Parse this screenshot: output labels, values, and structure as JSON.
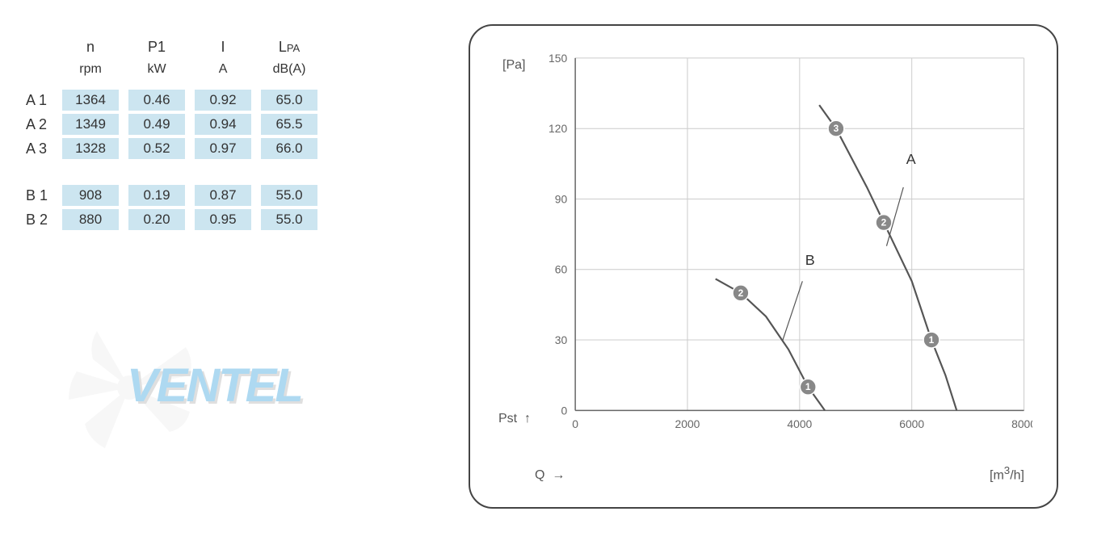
{
  "table": {
    "headers": [
      {
        "symbol": "n",
        "unit": "rpm"
      },
      {
        "symbol": "P1",
        "unit": "kW"
      },
      {
        "symbol": "I",
        "unit": "A"
      },
      {
        "symbol": "LPA",
        "unit": "dB(A)"
      }
    ],
    "groups": [
      {
        "label": "A",
        "rows": [
          {
            "idx": "1",
            "n": "1364",
            "p1": "0.46",
            "i": "0.92",
            "lpa": "65.0"
          },
          {
            "idx": "2",
            "n": "1349",
            "p1": "0.49",
            "i": "0.94",
            "lpa": "65.5"
          },
          {
            "idx": "3",
            "n": "1328",
            "p1": "0.52",
            "i": "0.97",
            "lpa": "66.0"
          }
        ]
      },
      {
        "label": "B",
        "rows": [
          {
            "idx": "1",
            "n": "908",
            "p1": "0.19",
            "i": "0.87",
            "lpa": "55.0"
          },
          {
            "idx": "2",
            "n": "880",
            "p1": "0.20",
            "i": "0.95",
            "lpa": "55.0"
          }
        ]
      }
    ],
    "cell_bg_color": "#cce5f0",
    "text_color": "#333333"
  },
  "watermark": {
    "text": "VENTEL",
    "primary_color": "#5fb4e5",
    "shadow_color": "#c0c0c0",
    "fan_color": "#d8d8d8"
  },
  "chart": {
    "type": "line",
    "x_axis": {
      "label": "Q →",
      "unit": "[m³/h]",
      "min": 0,
      "max": 8000,
      "tick_step": 2000,
      "ticks": [
        0,
        2000,
        4000,
        6000,
        8000
      ]
    },
    "y_axis": {
      "label": "Pst ↑",
      "unit": "[Pa]",
      "min": 0,
      "max": 150,
      "tick_step": 30,
      "ticks": [
        0,
        30,
        60,
        90,
        120,
        150
      ]
    },
    "grid_color": "#cccccc",
    "axis_color": "#666666",
    "background_color": "#ffffff",
    "line_color": "#555555",
    "line_width": 2.2,
    "border_radius": 30,
    "border_color": "#444444",
    "font_size": 14,
    "marker_fill": "#888888",
    "marker_text_color": "#ffffff",
    "marker_radius": 10,
    "series": [
      {
        "name": "A",
        "label_pos": {
          "x": 5900,
          "y": 105
        },
        "label_arrow": {
          "from": {
            "x": 5850,
            "y": 95
          },
          "to": {
            "x": 5550,
            "y": 70
          }
        },
        "points": [
          {
            "x": 4350,
            "y": 130
          },
          {
            "x": 4650,
            "y": 120
          },
          {
            "x": 5200,
            "y": 95
          },
          {
            "x": 5500,
            "y": 80
          },
          {
            "x": 6000,
            "y": 55
          },
          {
            "x": 6350,
            "y": 30
          },
          {
            "x": 6600,
            "y": 15
          },
          {
            "x": 6800,
            "y": 0
          }
        ],
        "markers": [
          {
            "num": "3",
            "x": 4650,
            "y": 120
          },
          {
            "num": "2",
            "x": 5500,
            "y": 80
          },
          {
            "num": "1",
            "x": 6350,
            "y": 30
          }
        ]
      },
      {
        "name": "B",
        "label_pos": {
          "x": 4100,
          "y": 62
        },
        "label_arrow": {
          "from": {
            "x": 4050,
            "y": 55
          },
          "to": {
            "x": 3700,
            "y": 30
          }
        },
        "points": [
          {
            "x": 2500,
            "y": 56
          },
          {
            "x": 2950,
            "y": 50
          },
          {
            "x": 3400,
            "y": 40
          },
          {
            "x": 3800,
            "y": 26
          },
          {
            "x": 4150,
            "y": 10
          },
          {
            "x": 4450,
            "y": 0
          }
        ],
        "markers": [
          {
            "num": "2",
            "x": 2950,
            "y": 50
          },
          {
            "num": "1",
            "x": 4150,
            "y": 10
          }
        ]
      }
    ]
  }
}
